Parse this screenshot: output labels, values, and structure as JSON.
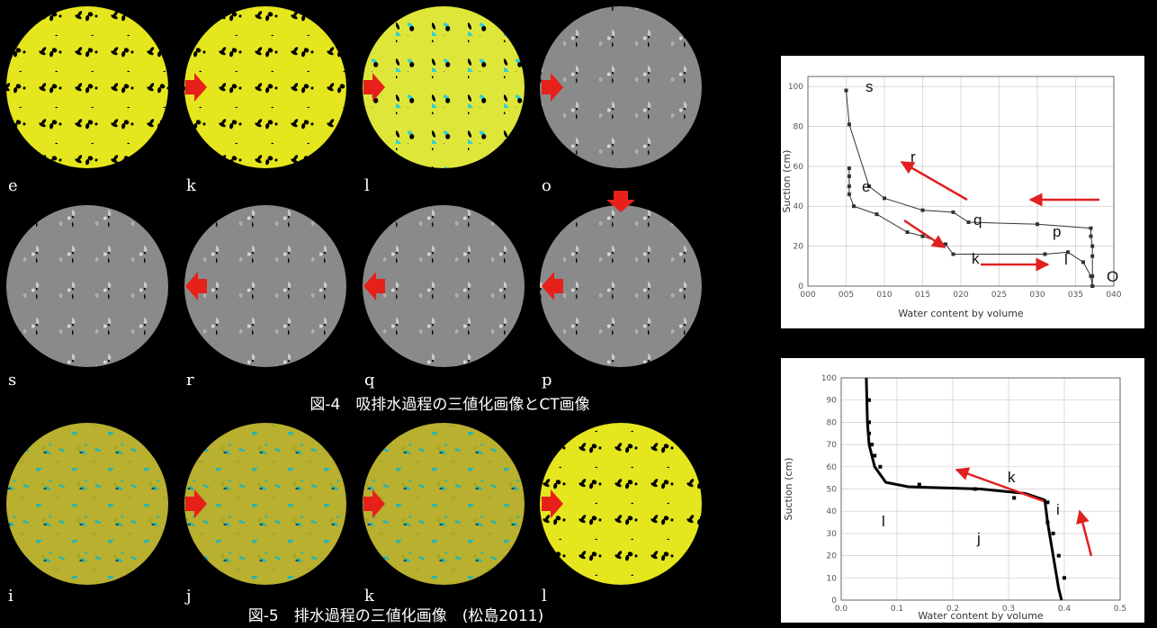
{
  "figure4": {
    "labels": [
      "e",
      "k",
      "l",
      "o",
      "s",
      "r",
      "q",
      "p"
    ],
    "caption": "図-4　吸排水過程の三値化画像とCT画像"
  },
  "figure5": {
    "labels": [
      "i",
      "j",
      "k",
      "l"
    ],
    "caption": "図-5　排水過程の三値化画像　(松島2011)"
  },
  "chart_data": [
    {
      "type": "line",
      "ylabel": "Suction (cm)",
      "xlabel": "Water content by volume",
      "xlim": [
        0,
        0.4
      ],
      "xticks": [
        {
          "value": 0,
          "label": "000"
        },
        {
          "value": 0.05,
          "label": "005"
        },
        {
          "value": 0.1,
          "label": "010"
        },
        {
          "value": 0.15,
          "label": "015"
        },
        {
          "value": 0.2,
          "label": "020"
        },
        {
          "value": 0.25,
          "label": "025"
        },
        {
          "value": 0.3,
          "label": "030"
        },
        {
          "value": 0.35,
          "label": "035"
        },
        {
          "value": 0.4,
          "label": "040"
        }
      ],
      "ylim": [
        0,
        105
      ],
      "yticks": [
        0,
        20,
        40,
        60,
        80,
        100
      ],
      "grid": true,
      "series": [
        {
          "color": "#333333",
          "mode": "lines+markers",
          "x": [
            0.05,
            0.054,
            0.08,
            0.1,
            0.15,
            0.19,
            0.21,
            0.3,
            0.37,
            0.37,
            0.372,
            0.372,
            0.372,
            0.372
          ],
          "values": [
            98,
            81,
            50,
            44,
            38,
            37,
            32,
            31,
            29,
            25,
            20,
            15,
            5,
            0
          ]
        },
        {
          "color": "#333333",
          "mode": "lines+markers",
          "x": [
            0.054,
            0.054,
            0.054,
            0.054,
            0.06,
            0.09,
            0.13,
            0.15,
            0.18,
            0.19,
            0.31,
            0.34,
            0.36,
            0.37,
            0.372
          ],
          "values": [
            59,
            55,
            50,
            46,
            40,
            36,
            27,
            25,
            21,
            16,
            16,
            17,
            12,
            5,
            0
          ]
        }
      ],
      "annotations": [
        "s",
        "r",
        "e",
        "q",
        "p",
        "k",
        "l",
        "O"
      ]
    },
    {
      "type": "line",
      "ylabel": "Suction (cm)",
      "xlabel": "Water content by volume",
      "xlim": [
        0,
        0.5
      ],
      "xticks": [
        {
          "value": 0,
          "label": "0.0"
        },
        0.1,
        0.2,
        0.3,
        0.4,
        0.5
      ],
      "ylim": [
        0,
        100
      ],
      "yticks": [
        0,
        10,
        20,
        30,
        40,
        50,
        60,
        70,
        80,
        90,
        100
      ],
      "grid": true,
      "series": [
        {
          "color": "#000000",
          "mode": "lines",
          "x": [
            0.045,
            0.047,
            0.05,
            0.06,
            0.08,
            0.12,
            0.25,
            0.33,
            0.365,
            0.37,
            0.38,
            0.39,
            0.395
          ],
          "values": [
            100,
            80,
            70,
            60,
            53,
            51,
            50,
            48,
            45,
            35,
            20,
            5,
            0
          ]
        },
        {
          "color": "#000000",
          "mode": "markers",
          "x": [
            0.05,
            0.05,
            0.05,
            0.055,
            0.06,
            0.07,
            0.14,
            0.24,
            0.31,
            0.37,
            0.37,
            0.38,
            0.39,
            0.4
          ],
          "values": [
            90,
            80,
            75,
            70,
            65,
            60,
            52,
            50,
            46,
            44,
            35,
            30,
            20,
            10
          ]
        }
      ],
      "annotations": [
        "k",
        "i",
        "l",
        "j"
      ]
    }
  ]
}
